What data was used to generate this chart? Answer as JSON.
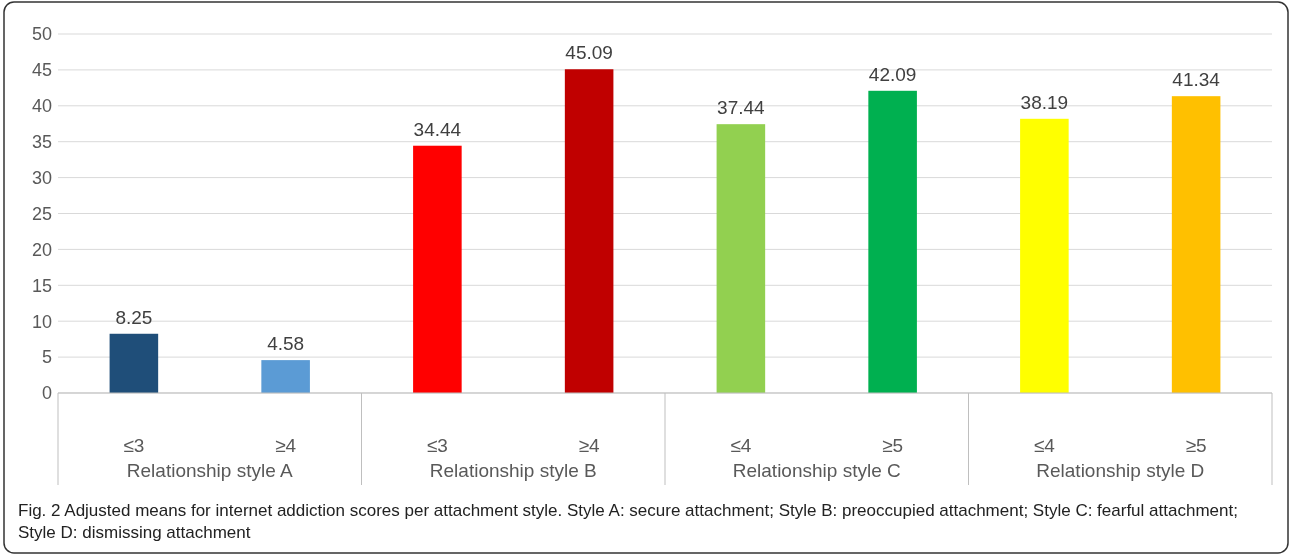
{
  "chart_data": {
    "type": "bar",
    "categories": [
      "≤3",
      "≥4",
      "≤3",
      "≥4",
      "≤4",
      "≥5",
      "≤4",
      "≥5"
    ],
    "values": [
      8.25,
      4.58,
      34.44,
      45.09,
      37.44,
      42.09,
      38.19,
      41.34
    ],
    "colors": [
      "#1f4e79",
      "#5b9bd5",
      "#ff0000",
      "#c00000",
      "#92d050",
      "#00b050",
      "#ffff00",
      "#ffc000"
    ],
    "ylim": [
      0,
      50
    ],
    "yticks": [
      0,
      5,
      10,
      15,
      20,
      25,
      30,
      35,
      40,
      45,
      50
    ],
    "grid": "y",
    "data_labels": true,
    "annotations": [
      "Relationship style A",
      "Relationship style B",
      "Relationship style C",
      "Relationship style D",
      "Fig. 2 Adjusted means for internet addiction scores per attachment style. Style A: secure attachment; Style B: preoccupied attachment; Style C: fearful attachment; Style D: dismissing attachment"
    ]
  }
}
